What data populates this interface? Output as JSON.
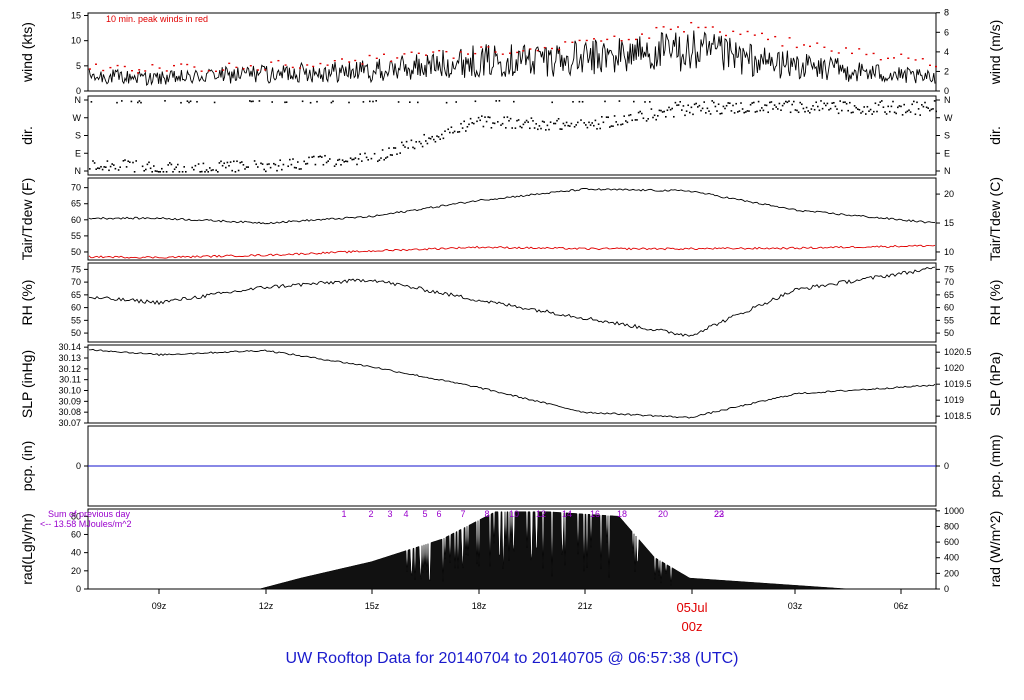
{
  "title": "UW Rooftop Data for 20140704  to  20140705 @ 06:57:38  (UTC)",
  "colors": {
    "accent_red": "#e00000",
    "pcp_blue": "#1010cc",
    "purple": "#9900cc",
    "title_blue": "#1a1acc"
  },
  "x_axis": {
    "ticks": [
      "09z",
      "12z",
      "15z",
      "18z",
      "21z",
      "00z",
      "03z",
      "06z"
    ],
    "date_label": "05Jul",
    "date_label_sub": "00z"
  },
  "chart_data": [
    {
      "type": "line",
      "ylabel": "wind (kts)",
      "ylabel_right": "wind (m/s)",
      "annotation": "10 min. peak winds in red",
      "yticks": [
        "0",
        "5",
        "10",
        "15"
      ],
      "yticks_right": [
        "0",
        "2",
        "4",
        "6",
        "8"
      ],
      "ylim": [
        0,
        15.5
      ],
      "x": [
        "06:59",
        "09:00",
        "12:00",
        "15:00",
        "18:00",
        "21:00",
        "00:00",
        "03:00",
        "06:57"
      ],
      "series": [
        {
          "values": [
            3,
            2.5,
            3.5,
            4,
            6,
            6.5,
            8,
            5,
            2.5
          ]
        },
        {
          "values": [
            4.5,
            4.5,
            5,
            6.5,
            8,
            9.5,
            13,
            9.5,
            5.5
          ]
        }
      ]
    },
    {
      "type": "scatter",
      "ylabel": "dir.",
      "ylabel_right": "dir.",
      "yticks": [
        "N",
        "E",
        "S",
        "W",
        "N"
      ],
      "yticks_right": [
        "N",
        "E",
        "S",
        "W",
        "N"
      ],
      "ylim": [
        0,
        360
      ],
      "x": [
        "06:59",
        "09:00",
        "12:00",
        "15:00",
        "18:00",
        "21:00",
        "00:00",
        "03:00",
        "06:57"
      ],
      "values": [
        45,
        15,
        30,
        70,
        255,
        235,
        320,
        330,
        310
      ]
    },
    {
      "type": "line",
      "ylabel": "Tair/Tdew (F)",
      "ylabel_right": "Tair/Tdew (C)",
      "yticks": [
        "50",
        "55",
        "60",
        "65",
        "70"
      ],
      "yticks_right": [
        "10",
        "15",
        "20"
      ],
      "ylim": [
        47.5,
        73
      ],
      "x": [
        "06:59",
        "09:00",
        "12:00",
        "15:00",
        "18:00",
        "21:00",
        "00:00",
        "03:00",
        "06:57"
      ],
      "series": [
        {
          "values": [
            60.5,
            60.5,
            59,
            61,
            66,
            69.5,
            69,
            63,
            59
          ]
        },
        {
          "values": [
            48.5,
            48.3,
            49,
            50.3,
            51.5,
            51,
            51,
            51.2,
            52
          ]
        }
      ]
    },
    {
      "type": "line",
      "ylabel": "RH (%)",
      "ylabel_right": "RH (%)",
      "yticks": [
        "50",
        "55",
        "60",
        "65",
        "70",
        "75"
      ],
      "yticks_right": [
        "50",
        "55",
        "60",
        "65",
        "70",
        "75"
      ],
      "ylim": [
        46.5,
        77.5
      ],
      "x": [
        "06:59",
        "09:00",
        "12:00",
        "15:00",
        "18:00",
        "21:00",
        "00:00",
        "03:00",
        "06:57"
      ],
      "values": [
        64,
        62,
        68,
        71,
        63,
        56,
        49,
        67,
        75.5
      ]
    },
    {
      "type": "line",
      "ylabel": "SLP (inHg)",
      "ylabel_right": "SLP (hPa)",
      "yticks": [
        "30.07",
        "30.08",
        "30.09",
        "30.10",
        "30.11",
        "30.12",
        "30.13",
        "30.14"
      ],
      "yticks_right": [
        "1018.5",
        "1019",
        "1019.5",
        "1020",
        "1020.5"
      ],
      "ylim": [
        30.07,
        30.142
      ],
      "x": [
        "06:59",
        "09:00",
        "12:00",
        "15:00",
        "18:00",
        "21:00",
        "00:00",
        "03:00",
        "06:57"
      ],
      "values": [
        30.138,
        30.133,
        30.137,
        30.122,
        30.103,
        30.08,
        30.075,
        30.097,
        30.105
      ]
    },
    {
      "type": "line",
      "ylabel": "pcp. (in)",
      "ylabel_right": "pcp. (mm)",
      "yticks": [
        "0"
      ],
      "yticks_right": [
        "0"
      ],
      "ylim": [
        -1,
        1
      ],
      "x": [
        "06:59",
        "06:57"
      ],
      "values": [
        0,
        0
      ]
    },
    {
      "type": "area",
      "ylabel": "rad(Lgly/hr)",
      "ylabel_right": "rad (W/m^2)",
      "yticks": [
        "0",
        "20",
        "40",
        "60",
        "80"
      ],
      "yticks_right": [
        "0",
        "200",
        "400",
        "600",
        "800",
        "1000"
      ],
      "ylim": [
        0,
        88
      ],
      "annotation_line1": "Sum of previous day",
      "annotation_line2": "<-- 13.58 MJoules/m^2",
      "hour_labels": [
        "1",
        "2",
        "3",
        "4",
        "5",
        "6",
        "7",
        "8",
        "10",
        "12",
        "14",
        "16",
        "18",
        "20",
        "22",
        "23"
      ],
      "x": [
        "06:59",
        "11:50",
        "13:00",
        "15:00",
        "17:00",
        "18:30",
        "20:00",
        "22:00",
        "23:00",
        "00:00",
        "01:30",
        "03:00",
        "04:30",
        "06:57"
      ],
      "values": [
        0,
        0,
        12,
        30,
        55,
        85,
        85,
        80,
        35,
        12,
        8,
        4,
        0,
        0
      ]
    }
  ]
}
